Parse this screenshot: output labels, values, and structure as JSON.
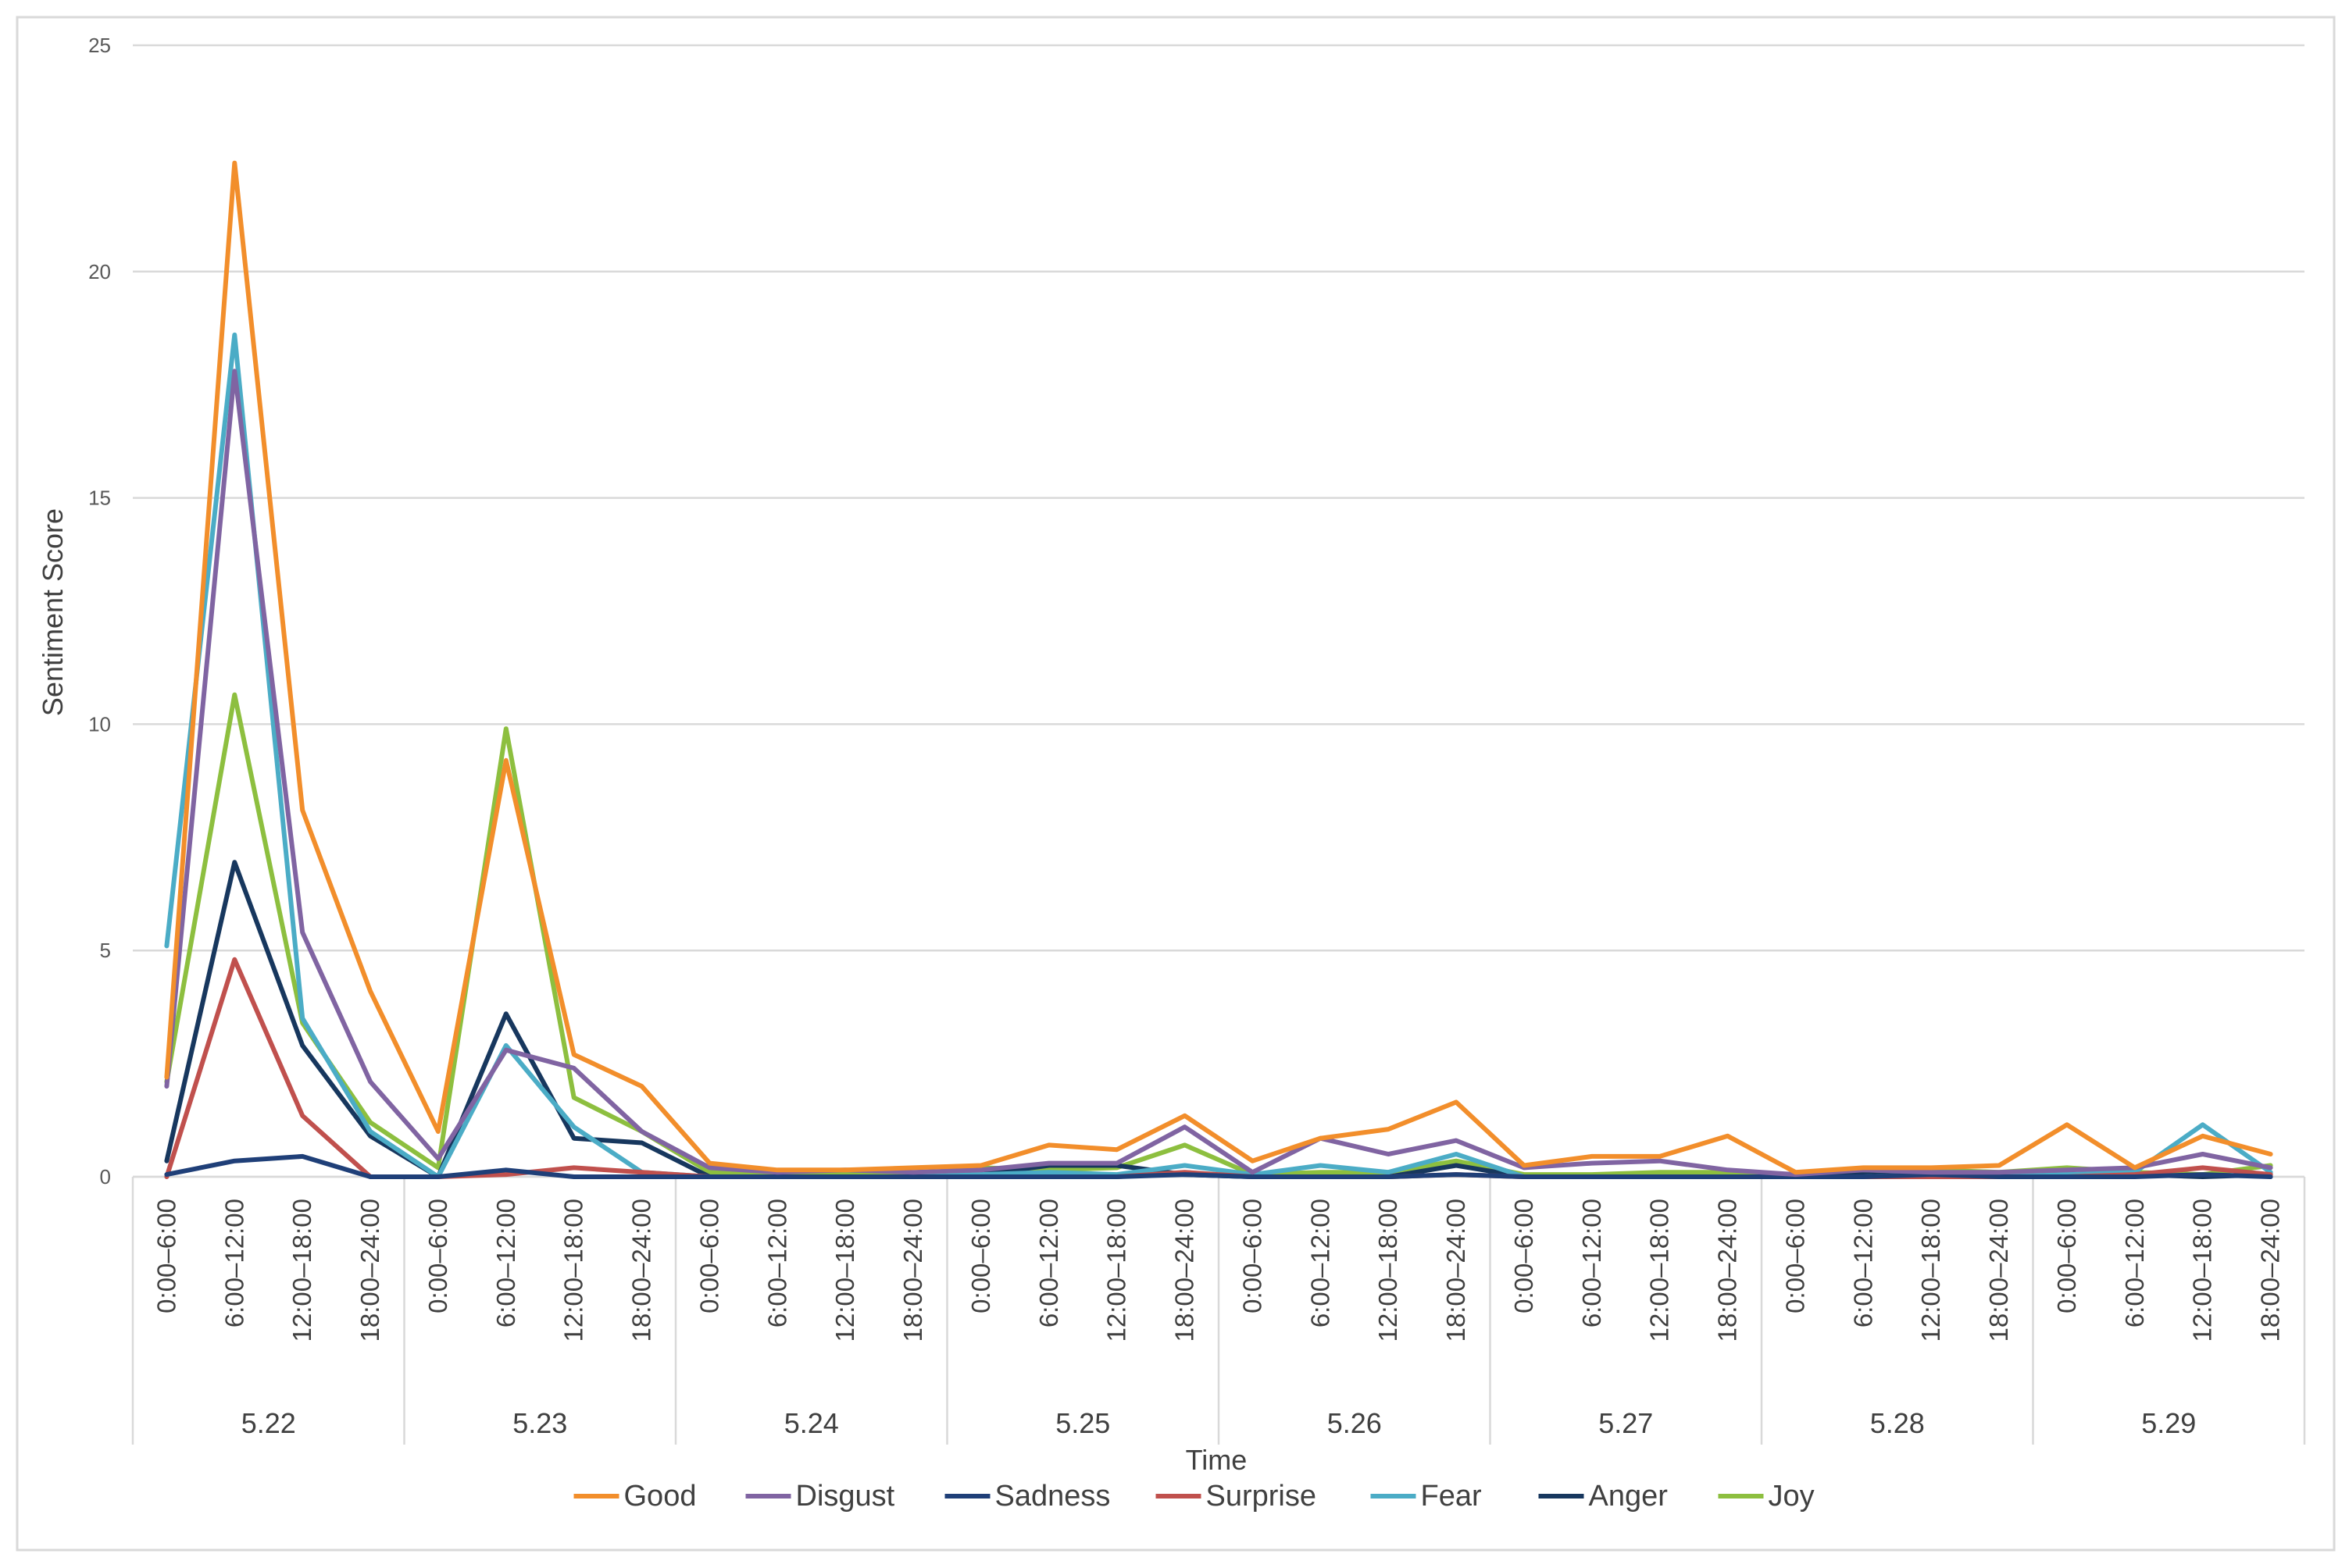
{
  "chart_data": {
    "type": "line",
    "title": "",
    "xlabel": "Time",
    "ylabel": "Sentiment Score",
    "ylim": [
      0,
      25
    ],
    "yticks": [
      0,
      5,
      10,
      15,
      20,
      25
    ],
    "grid": true,
    "legend_position": "bottom",
    "groups": [
      "5.22",
      "5.23",
      "5.24",
      "5.25",
      "5.26",
      "5.27",
      "5.28",
      "5.29"
    ],
    "periods": [
      "0:00–6:00",
      "6:00–12:00",
      "12:00–18:00",
      "18:00–24:00"
    ],
    "series": [
      {
        "name": "Good",
        "color": "#F28E2B",
        "values": [
          2.2,
          22.4,
          8.1,
          4.1,
          1.0,
          9.2,
          2.7,
          2.0,
          0.3,
          0.15,
          0.15,
          0.2,
          0.25,
          0.7,
          0.6,
          1.35,
          0.35,
          0.85,
          1.05,
          1.65,
          0.25,
          0.45,
          0.45,
          0.9,
          0.1,
          0.2,
          0.2,
          0.25,
          1.15,
          0.2,
          0.9,
          0.5
        ]
      },
      {
        "name": "Disgust",
        "color": "#8064A2",
        "values": [
          2.0,
          17.8,
          5.4,
          2.1,
          0.4,
          2.8,
          2.4,
          1.0,
          0.2,
          0.1,
          0.15,
          0.1,
          0.15,
          0.3,
          0.3,
          1.1,
          0.1,
          0.85,
          0.5,
          0.8,
          0.2,
          0.3,
          0.35,
          0.15,
          0.05,
          0.15,
          0.1,
          0.1,
          0.15,
          0.2,
          0.5,
          0.2
        ]
      },
      {
        "name": "Sadness",
        "color": "#1F3F78",
        "values": [
          0.05,
          0.35,
          0.45,
          0.0,
          0.0,
          0.15,
          0.0,
          0.0,
          0.0,
          0.0,
          0.0,
          0.0,
          0.0,
          0.0,
          0.0,
          0.05,
          0.0,
          0.0,
          0.0,
          0.05,
          0.0,
          0.0,
          0.0,
          0.0,
          0.0,
          0.0,
          0.05,
          0.0,
          0.0,
          0.0,
          0.05,
          0.0
        ]
      },
      {
        "name": "Surprise",
        "color": "#C0504D",
        "values": [
          0.0,
          4.8,
          1.35,
          0.0,
          0.0,
          0.05,
          0.2,
          0.1,
          0.0,
          0.0,
          0.0,
          0.0,
          0.0,
          0.0,
          0.0,
          0.1,
          0.0,
          0.0,
          0.0,
          0.05,
          0.0,
          0.0,
          0.0,
          0.0,
          0.0,
          0.0,
          0.0,
          0.0,
          0.0,
          0.05,
          0.2,
          0.05
        ]
      },
      {
        "name": "Fear",
        "color": "#4BACC6",
        "values": [
          5.1,
          18.6,
          3.5,
          1.0,
          0.0,
          2.9,
          1.1,
          0.1,
          0.0,
          0.0,
          0.0,
          0.0,
          0.05,
          0.1,
          0.05,
          0.25,
          0.05,
          0.25,
          0.1,
          0.5,
          0.0,
          0.0,
          0.0,
          0.0,
          0.0,
          0.0,
          0.05,
          0.0,
          0.05,
          0.1,
          1.15,
          0.1
        ]
      },
      {
        "name": "Anger",
        "color": "#17375E",
        "values": [
          0.35,
          6.95,
          2.9,
          0.9,
          0.0,
          3.6,
          0.85,
          0.75,
          0.0,
          0.0,
          0.0,
          0.0,
          0.05,
          0.25,
          0.25,
          0.05,
          0.0,
          0.0,
          0.0,
          0.25,
          0.0,
          0.0,
          0.0,
          0.0,
          0.0,
          0.05,
          0.0,
          0.0,
          0.05,
          0.05,
          0.0,
          0.05
        ]
      },
      {
        "name": "Joy",
        "color": "#8DBF3F",
        "values": [
          2.1,
          10.65,
          3.4,
          1.2,
          0.2,
          9.9,
          1.75,
          1.0,
          0.1,
          0.05,
          0.05,
          0.05,
          0.2,
          0.15,
          0.2,
          0.7,
          0.05,
          0.1,
          0.1,
          0.35,
          0.05,
          0.05,
          0.1,
          0.1,
          0.0,
          0.1,
          0.15,
          0.1,
          0.2,
          0.1,
          0.05,
          0.25
        ]
      }
    ]
  }
}
